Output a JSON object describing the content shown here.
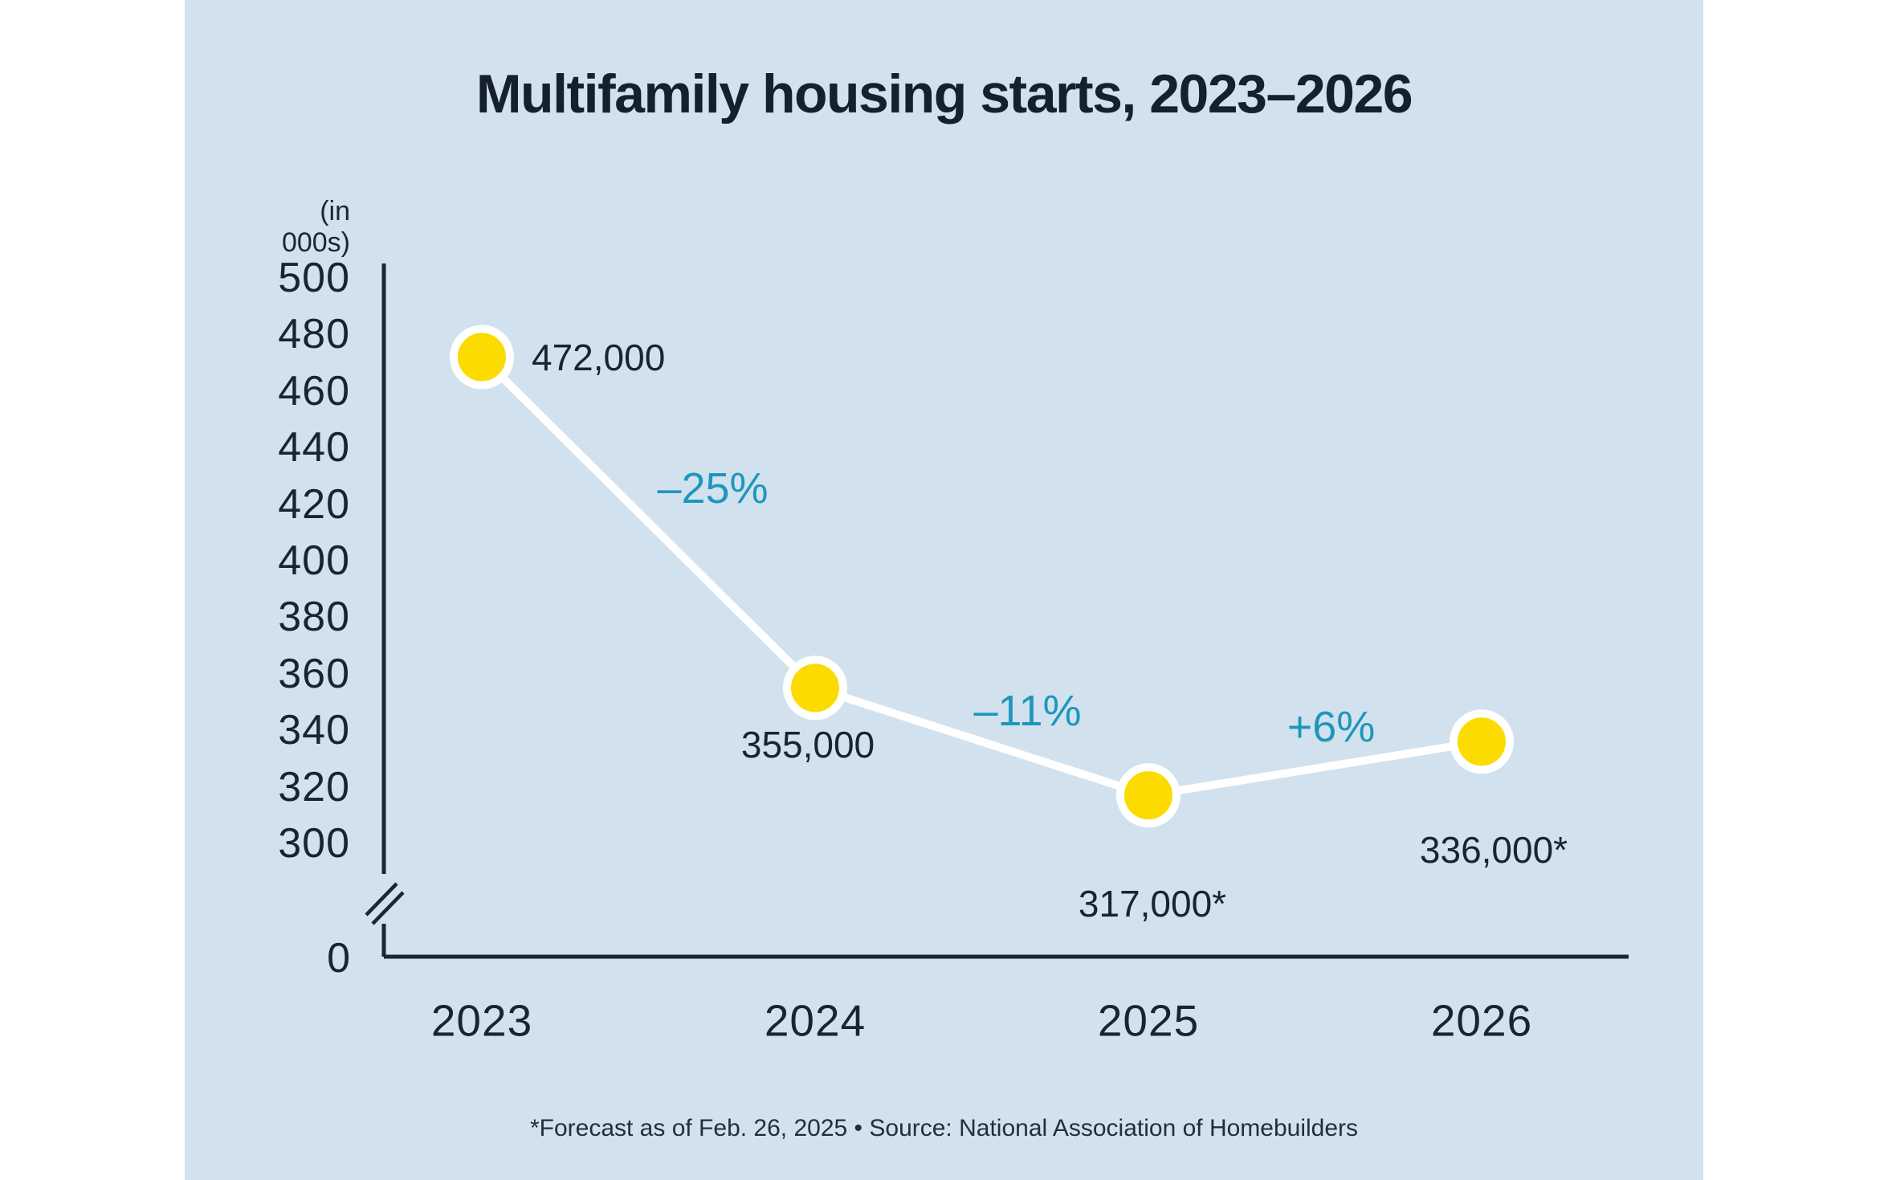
{
  "page": {
    "background": "#FFFFFF",
    "panel_background": "#D1E2EE"
  },
  "chart_data": {
    "type": "line",
    "title": "Multifamily housing starts, 2023–2026",
    "unit_label": "(in 000s)",
    "categories": [
      "2023",
      "2024",
      "2025",
      "2026"
    ],
    "values": [
      472,
      355,
      317,
      336
    ],
    "point_labels": [
      "472,000",
      "355,000",
      "317,000*",
      "336,000*"
    ],
    "changes": [
      "–25%",
      "–11%",
      "+6%"
    ],
    "yticks": [
      500,
      480,
      460,
      440,
      420,
      400,
      380,
      360,
      340,
      320,
      300
    ],
    "y_origin_label": "0",
    "ylim": [
      300,
      500
    ],
    "y_axis_break": true,
    "grid": false,
    "legend": false,
    "footnote": "*Forecast as of Feb. 26, 2025  • Source: National Association of Homebuilders",
    "colors": {
      "point_fill": "#FCDB00",
      "point_ring": "#FFFFFF",
      "line": "#FFFFFF",
      "change_text": "#1E97BD",
      "text": "#19242F",
      "axis": "#1B2631",
      "panel": "#D1E2EE"
    }
  }
}
